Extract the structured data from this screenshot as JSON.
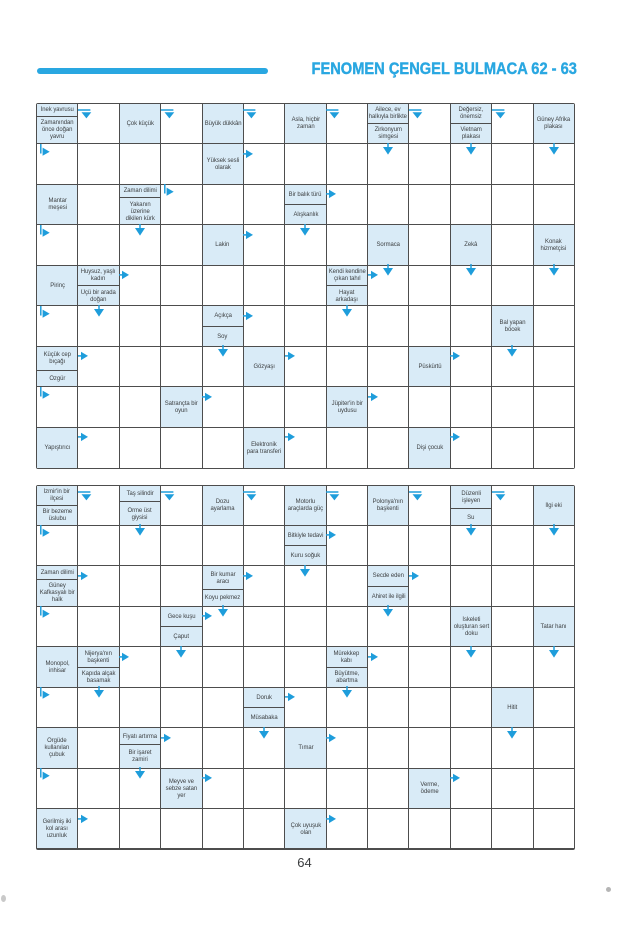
{
  "header": {
    "title": "FENOMEN ÇENGEL BULMACA 62 - 63"
  },
  "page_number": "64",
  "colors": {
    "accent_blue": "#29a7e1",
    "arrow_blue": "#1e9ddb",
    "clue_cell_bg": "#d9ebf7",
    "grid_line": "#4d4d4d",
    "clue_text": "#3e4143"
  },
  "grid_shape": {
    "columns": 13,
    "rows": 9
  },
  "arrow_legend": {
    "r": "right-arrow",
    "d": "down-arrow",
    "ld": "from-left-bend-down-arrow",
    "tr": "from-top-bend-right-arrow"
  },
  "grids": [
    {
      "name": "top",
      "clues": [
        {
          "c": 1,
          "r": 1,
          "parts": [
            "İnek yavrusu",
            "Zamanından\nönce doğan\nyavru"
          ]
        },
        {
          "c": 3,
          "r": 1,
          "parts": [
            "Çok küçük"
          ]
        },
        {
          "c": 5,
          "r": 1,
          "parts": [
            "Büyük dükkân"
          ]
        },
        {
          "c": 7,
          "r": 1,
          "parts": [
            "Asla, hiçbir\nzaman"
          ]
        },
        {
          "c": 9,
          "r": 1,
          "parts": [
            "Ailece, ev\nhalkıyla birlikte",
            "Zirkonyum\nsimgesi"
          ]
        },
        {
          "c": 11,
          "r": 1,
          "parts": [
            "Değersiz,\nönemsiz",
            "Vietnam\nplakası"
          ]
        },
        {
          "c": 13,
          "r": 1,
          "parts": [
            "Güney Afrika\nplakası"
          ]
        },
        {
          "c": 5,
          "r": 2,
          "parts": [
            "Yüksek sesli\nolarak"
          ]
        },
        {
          "c": 1,
          "r": 3,
          "parts": [
            "Mantar\nmeşesi"
          ]
        },
        {
          "c": 3,
          "r": 3,
          "parts": [
            "Zaman dilimi",
            "Yakanın\nüzerine\ndikilen kürk"
          ]
        },
        {
          "c": 7,
          "r": 3,
          "parts": [
            "Bir balık türü",
            "Alışkanlık"
          ]
        },
        {
          "c": 5,
          "r": 4,
          "parts": [
            "Lakin"
          ]
        },
        {
          "c": 9,
          "r": 4,
          "parts": [
            "Sormaca"
          ]
        },
        {
          "c": 11,
          "r": 4,
          "parts": [
            "Zekâ"
          ]
        },
        {
          "c": 13,
          "r": 4,
          "parts": [
            "Konak\nhizmetçisi"
          ]
        },
        {
          "c": 1,
          "r": 5,
          "parts": [
            "Pirinç"
          ]
        },
        {
          "c": 2,
          "r": 5,
          "parts": [
            "Huysuz, yaşlı\nkadın",
            "Üçü bir arada\ndoğan"
          ]
        },
        {
          "c": 8,
          "r": 5,
          "parts": [
            "Kendi kendine\nçıkan tahıl",
            "Hayat\narkadaşı"
          ]
        },
        {
          "c": 5,
          "r": 6,
          "parts": [
            "Açıkça",
            "Soy"
          ]
        },
        {
          "c": 12,
          "r": 6,
          "parts": [
            "Bal yapan\nböcek"
          ]
        },
        {
          "c": 1,
          "r": 7,
          "parts": [
            "Küçük cep\nbıçağı",
            "Özgür"
          ]
        },
        {
          "c": 6,
          "r": 7,
          "parts": [
            "Gözyaşı"
          ]
        },
        {
          "c": 10,
          "r": 7,
          "parts": [
            "Püskürtü"
          ]
        },
        {
          "c": 4,
          "r": 8,
          "parts": [
            "Satrançta bir\noyun"
          ]
        },
        {
          "c": 8,
          "r": 8,
          "parts": [
            "Jüpiter'in bir\nuydusu"
          ]
        },
        {
          "c": 1,
          "r": 9,
          "parts": [
            "Yapıştırıcı"
          ]
        },
        {
          "c": 6,
          "r": 9,
          "parts": [
            "Elektronik\npara transferi"
          ]
        },
        {
          "c": 10,
          "r": 9,
          "parts": [
            "Dişi çocuk"
          ]
        }
      ],
      "arrows": [
        {
          "c": 2,
          "r": 1,
          "t": "ld"
        },
        {
          "c": 4,
          "r": 1,
          "t": "ld"
        },
        {
          "c": 6,
          "r": 1,
          "t": "ld"
        },
        {
          "c": 8,
          "r": 1,
          "t": "ld"
        },
        {
          "c": 10,
          "r": 1,
          "t": "ld"
        },
        {
          "c": 12,
          "r": 1,
          "t": "ld"
        },
        {
          "c": 1,
          "r": 2,
          "t": "tr"
        },
        {
          "c": 6,
          "r": 2,
          "t": "r"
        },
        {
          "c": 9,
          "r": 2,
          "t": "d"
        },
        {
          "c": 11,
          "r": 2,
          "t": "d"
        },
        {
          "c": 13,
          "r": 2,
          "t": "d"
        },
        {
          "c": 4,
          "r": 3,
          "t": "tr"
        },
        {
          "c": 8,
          "r": 3,
          "t": "r"
        },
        {
          "c": 1,
          "r": 4,
          "t": "tr"
        },
        {
          "c": 3,
          "r": 4,
          "t": "d"
        },
        {
          "c": 6,
          "r": 4,
          "t": "r"
        },
        {
          "c": 7,
          "r": 4,
          "t": "d"
        },
        {
          "c": 3,
          "r": 5,
          "t": "r"
        },
        {
          "c": 9,
          "r": 5,
          "t": "r"
        },
        {
          "c": 9,
          "r": 5,
          "t": "d"
        },
        {
          "c": 11,
          "r": 5,
          "t": "d"
        },
        {
          "c": 13,
          "r": 5,
          "t": "d"
        },
        {
          "c": 1,
          "r": 6,
          "t": "tr"
        },
        {
          "c": 2,
          "r": 6,
          "t": "d"
        },
        {
          "c": 6,
          "r": 6,
          "t": "r"
        },
        {
          "c": 8,
          "r": 6,
          "t": "d"
        },
        {
          "c": 2,
          "r": 7,
          "t": "r"
        },
        {
          "c": 5,
          "r": 7,
          "t": "d"
        },
        {
          "c": 7,
          "r": 7,
          "t": "r"
        },
        {
          "c": 11,
          "r": 7,
          "t": "r"
        },
        {
          "c": 12,
          "r": 7,
          "t": "d"
        },
        {
          "c": 1,
          "r": 8,
          "t": "tr"
        },
        {
          "c": 5,
          "r": 8,
          "t": "r"
        },
        {
          "c": 9,
          "r": 8,
          "t": "r"
        },
        {
          "c": 2,
          "r": 9,
          "t": "r"
        },
        {
          "c": 7,
          "r": 9,
          "t": "r"
        },
        {
          "c": 11,
          "r": 9,
          "t": "r"
        }
      ]
    },
    {
      "name": "bottom",
      "clues": [
        {
          "c": 1,
          "r": 1,
          "parts": [
            "İzmir'in bir\nilçesi",
            "Bir bezeme\nüslubu"
          ]
        },
        {
          "c": 3,
          "r": 1,
          "parts": [
            "Taş silindir",
            "Örme üst\ngiysisi"
          ]
        },
        {
          "c": 5,
          "r": 1,
          "parts": [
            "Dozu\nayarlama"
          ]
        },
        {
          "c": 7,
          "r": 1,
          "parts": [
            "Motorlu\naraçlarda güç"
          ]
        },
        {
          "c": 9,
          "r": 1,
          "parts": [
            "Polonya'nın\nbaşkenti"
          ]
        },
        {
          "c": 11,
          "r": 1,
          "parts": [
            "Düzenli\nişleyen",
            "Su"
          ]
        },
        {
          "c": 13,
          "r": 1,
          "parts": [
            "İlgi eki"
          ]
        },
        {
          "c": 7,
          "r": 2,
          "parts": [
            "Bitkiyle tedavi",
            "Kuru soğuk"
          ]
        },
        {
          "c": 1,
          "r": 3,
          "parts": [
            "Zaman dilimi",
            "Güney\nKafkasyalı bir\nhalk"
          ]
        },
        {
          "c": 5,
          "r": 3,
          "parts": [
            "Bir kumar\naracı",
            "Koyu pekmez"
          ]
        },
        {
          "c": 9,
          "r": 3,
          "parts": [
            "Secde eden",
            "Ahiret ile ilgili"
          ]
        },
        {
          "c": 4,
          "r": 4,
          "parts": [
            "Gece kuşu",
            "Çaput"
          ]
        },
        {
          "c": 11,
          "r": 4,
          "parts": [
            "İskeleti\noluşturan sert\ndoku"
          ]
        },
        {
          "c": 13,
          "r": 4,
          "parts": [
            "Tatar hanı"
          ]
        },
        {
          "c": 1,
          "r": 5,
          "parts": [
            "Monopol,\ninhisar"
          ]
        },
        {
          "c": 2,
          "r": 5,
          "parts": [
            "Nijerya'nın\nbaşkenti",
            "Kapıda alçak\nbasamak"
          ]
        },
        {
          "c": 8,
          "r": 5,
          "parts": [
            "Mürekkep\nkabı",
            "Büyütme,\nabartma"
          ]
        },
        {
          "c": 6,
          "r": 6,
          "parts": [
            "Doruk",
            "Müsabaka"
          ]
        },
        {
          "c": 12,
          "r": 6,
          "parts": [
            "Hitit"
          ]
        },
        {
          "c": 1,
          "r": 7,
          "parts": [
            "Örgüde\nkullanılan\nçubuk"
          ]
        },
        {
          "c": 3,
          "r": 7,
          "parts": [
            "Fiyatı artırma",
            "Bir işaret\nzamiri"
          ]
        },
        {
          "c": 7,
          "r": 7,
          "parts": [
            "Tımar"
          ]
        },
        {
          "c": 4,
          "r": 8,
          "parts": [
            "Meyve ve\nsebze satan\nyer"
          ]
        },
        {
          "c": 10,
          "r": 8,
          "parts": [
            "Verme,\nödeme"
          ]
        },
        {
          "c": 1,
          "r": 9,
          "parts": [
            "Gerilmiş iki\nkol arası\nuzunluk"
          ]
        },
        {
          "c": 7,
          "r": 9,
          "parts": [
            "Çok uyuşuk\nolan"
          ]
        }
      ],
      "arrows": [
        {
          "c": 2,
          "r": 1,
          "t": "ld"
        },
        {
          "c": 4,
          "r": 1,
          "t": "ld"
        },
        {
          "c": 6,
          "r": 1,
          "t": "ld"
        },
        {
          "c": 8,
          "r": 1,
          "t": "ld"
        },
        {
          "c": 10,
          "r": 1,
          "t": "ld"
        },
        {
          "c": 12,
          "r": 1,
          "t": "ld"
        },
        {
          "c": 1,
          "r": 2,
          "t": "tr"
        },
        {
          "c": 3,
          "r": 2,
          "t": "d"
        },
        {
          "c": 8,
          "r": 2,
          "t": "r"
        },
        {
          "c": 11,
          "r": 2,
          "t": "d"
        },
        {
          "c": 13,
          "r": 2,
          "t": "d"
        },
        {
          "c": 2,
          "r": 3,
          "t": "r"
        },
        {
          "c": 6,
          "r": 3,
          "t": "r"
        },
        {
          "c": 7,
          "r": 3,
          "t": "d"
        },
        {
          "c": 10,
          "r": 3,
          "t": "r"
        },
        {
          "c": 1,
          "r": 4,
          "t": "tr"
        },
        {
          "c": 5,
          "r": 4,
          "t": "r"
        },
        {
          "c": 5,
          "r": 4,
          "t": "d"
        },
        {
          "c": 9,
          "r": 4,
          "t": "d"
        },
        {
          "c": 3,
          "r": 5,
          "t": "r"
        },
        {
          "c": 4,
          "r": 5,
          "t": "d"
        },
        {
          "c": 9,
          "r": 5,
          "t": "r"
        },
        {
          "c": 11,
          "r": 5,
          "t": "d"
        },
        {
          "c": 13,
          "r": 5,
          "t": "d"
        },
        {
          "c": 1,
          "r": 6,
          "t": "tr"
        },
        {
          "c": 2,
          "r": 6,
          "t": "d"
        },
        {
          "c": 7,
          "r": 6,
          "t": "r"
        },
        {
          "c": 8,
          "r": 6,
          "t": "d"
        },
        {
          "c": 4,
          "r": 7,
          "t": "r"
        },
        {
          "c": 6,
          "r": 7,
          "t": "d"
        },
        {
          "c": 8,
          "r": 7,
          "t": "r"
        },
        {
          "c": 12,
          "r": 7,
          "t": "d"
        },
        {
          "c": 1,
          "r": 8,
          "t": "tr"
        },
        {
          "c": 3,
          "r": 8,
          "t": "d"
        },
        {
          "c": 5,
          "r": 8,
          "t": "r"
        },
        {
          "c": 11,
          "r": 8,
          "t": "r"
        },
        {
          "c": 2,
          "r": 9,
          "t": "r"
        },
        {
          "c": 8,
          "r": 9,
          "t": "r"
        }
      ]
    }
  ]
}
